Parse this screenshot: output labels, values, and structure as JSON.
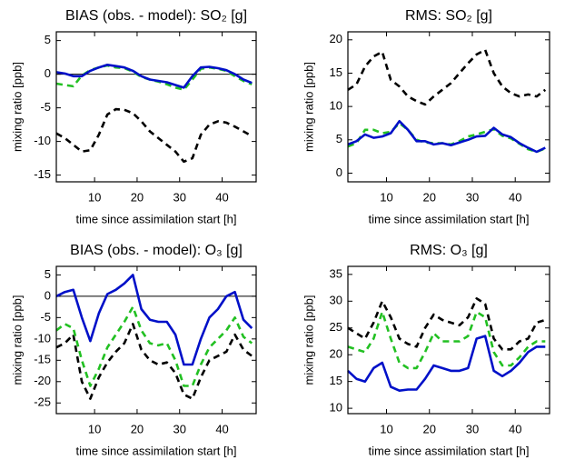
{
  "chart_data": [
    {
      "type": "line",
      "title": "BIAS (obs. - model): SO₂ [g]",
      "xlabel": "time since assimilation start [h]",
      "ylabel": "mixing ratio [ppb]",
      "x": [
        1,
        3,
        5,
        7,
        9,
        11,
        13,
        15,
        17,
        19,
        21,
        23,
        25,
        27,
        29,
        31,
        33,
        35,
        37,
        39,
        41,
        43,
        45,
        47
      ],
      "xlim": [
        1,
        48
      ],
      "xticks": [
        10,
        20,
        30,
        40
      ],
      "ylim": [
        -16,
        6.3
      ],
      "yticks": [
        -15,
        -10,
        -5,
        0,
        5
      ],
      "hline": 0,
      "series": [
        {
          "color": "#000000",
          "style": "dashed",
          "values": [
            -8.8,
            -9.5,
            -10.5,
            -11.5,
            -11.3,
            -9,
            -6,
            -5.2,
            -5.3,
            -5.8,
            -7,
            -8.5,
            -9.5,
            -10.5,
            -11.5,
            -13,
            -12.5,
            -9,
            -7.5,
            -7,
            -7.2,
            -7.8,
            -8.5,
            -9.2
          ]
        },
        {
          "color": "#22c022",
          "style": "dashed",
          "values": [
            -1.4,
            -1.6,
            -1.8,
            -0.2,
            0.6,
            1.0,
            1.3,
            1.0,
            0.9,
            0.4,
            -0.4,
            -0.8,
            -1.1,
            -1.5,
            -2.0,
            -2.3,
            -0.8,
            0.8,
            1.0,
            0.8,
            0.5,
            -0.3,
            -1.0,
            -1.5
          ]
        },
        {
          "color": "#0010c8",
          "style": "solid",
          "values": [
            0.3,
            0.1,
            -0.3,
            -0.3,
            0.5,
            1.0,
            1.4,
            1.2,
            1.0,
            0.5,
            -0.3,
            -0.8,
            -1.0,
            -1.2,
            -1.6,
            -2.0,
            -0.3,
            1.0,
            1.1,
            0.9,
            0.6,
            0,
            -0.8,
            -1.3
          ]
        }
      ]
    },
    {
      "type": "line",
      "title": "RMS: SO₂ [g]",
      "xlabel": "time since assimilation start [h]",
      "ylabel": "mixing ratio [ppb]",
      "x": [
        1,
        3,
        5,
        7,
        9,
        11,
        13,
        15,
        17,
        19,
        21,
        23,
        25,
        27,
        29,
        31,
        33,
        35,
        37,
        39,
        41,
        43,
        45,
        47
      ],
      "xlim": [
        1,
        48
      ],
      "xticks": [
        10,
        20,
        30,
        40
      ],
      "ylim": [
        -1.3,
        21.2
      ],
      "yticks": [
        0,
        5,
        10,
        15,
        20
      ],
      "series": [
        {
          "color": "#000000",
          "style": "dashed",
          "values": [
            12.5,
            13.3,
            16,
            17.5,
            18.2,
            14,
            13,
            11.5,
            10.8,
            10.3,
            11.5,
            12.5,
            13.5,
            15,
            16.5,
            17.8,
            18.5,
            15,
            13,
            12,
            11.5,
            11.8,
            11.5,
            12.5
          ]
        },
        {
          "color": "#22c022",
          "style": "dashed",
          "values": [
            4.0,
            4.5,
            6.5,
            6.5,
            6.0,
            6.2,
            7.5,
            6.5,
            5.0,
            4.6,
            4.5,
            4.5,
            4.3,
            4.8,
            5.5,
            5.8,
            6.2,
            6.6,
            5.6,
            5.2,
            4.4,
            3.6,
            3.2,
            3.7
          ]
        },
        {
          "color": "#0010c8",
          "style": "solid",
          "values": [
            4.3,
            4.8,
            5.8,
            5.3,
            5.5,
            6.0,
            7.8,
            6.5,
            4.8,
            4.8,
            4.3,
            4.5,
            4.2,
            4.6,
            5.0,
            5.5,
            5.6,
            6.8,
            5.8,
            5.4,
            4.5,
            3.8,
            3.2,
            3.8
          ]
        }
      ]
    },
    {
      "type": "line",
      "title": "BIAS (obs. - model): O₃ [g]",
      "xlabel": "time since assimilation start [h]",
      "ylabel": "mixing ratio [ppb]",
      "x": [
        1,
        3,
        5,
        7,
        9,
        11,
        13,
        15,
        17,
        19,
        21,
        23,
        25,
        27,
        29,
        31,
        33,
        35,
        37,
        39,
        41,
        43,
        45,
        47
      ],
      "xlim": [
        1,
        48
      ],
      "xticks": [
        10,
        20,
        30,
        40
      ],
      "ylim": [
        -27.5,
        7
      ],
      "yticks": [
        5,
        0,
        -5,
        -10,
        -15,
        -20,
        -25
      ],
      "hline": 0,
      "series": [
        {
          "color": "#000000",
          "style": "dashed",
          "values": [
            -12,
            -11,
            -9,
            -20,
            -24,
            -19,
            -15.5,
            -13,
            -11,
            -6.5,
            -12.5,
            -15,
            -16,
            -15.5,
            -18,
            -23,
            -24,
            -19,
            -15,
            -14,
            -13,
            -9,
            -12.5,
            -14
          ]
        },
        {
          "color": "#22c022",
          "style": "dashed",
          "values": [
            -8,
            -6.5,
            -7.5,
            -15,
            -21,
            -17,
            -12,
            -9,
            -6,
            -2.5,
            -8,
            -11,
            -11.5,
            -11,
            -15,
            -21,
            -21,
            -16,
            -12,
            -10,
            -8,
            -5,
            -9.5,
            -11
          ]
        },
        {
          "color": "#0010c8",
          "style": "solid",
          "values": [
            0,
            1,
            1.5,
            -5,
            -10.5,
            -4,
            0.5,
            1.5,
            3,
            5,
            -3,
            -5.5,
            -6,
            -6,
            -9,
            -16,
            -16,
            -10,
            -5,
            -3,
            0,
            1,
            -5.5,
            -7.5
          ]
        }
      ]
    },
    {
      "type": "line",
      "title": "RMS: O₃ [g]",
      "xlabel": "time since assimilation start [h]",
      "ylabel": "mixing ratio [ppb]",
      "x": [
        1,
        3,
        5,
        7,
        9,
        11,
        13,
        15,
        17,
        19,
        21,
        23,
        25,
        27,
        29,
        31,
        33,
        35,
        37,
        39,
        41,
        43,
        45,
        47
      ],
      "xlim": [
        1,
        48
      ],
      "xticks": [
        10,
        20,
        30,
        40
      ],
      "ylim": [
        9,
        36.5
      ],
      "yticks": [
        10,
        15,
        20,
        25,
        30,
        35
      ],
      "series": [
        {
          "color": "#000000",
          "style": "dashed",
          "values": [
            25,
            24,
            23,
            26,
            30,
            27,
            23,
            22,
            21.5,
            25,
            27.5,
            26.5,
            26,
            25.5,
            27,
            30.5,
            29.5,
            23,
            21,
            21,
            22.5,
            23,
            26,
            26.5
          ]
        },
        {
          "color": "#22c022",
          "style": "dashed",
          "values": [
            21.5,
            21,
            20.5,
            23,
            28,
            23,
            18.5,
            17.5,
            17.5,
            20.5,
            24,
            22.5,
            22.5,
            22.5,
            23.5,
            28,
            27,
            20.5,
            18,
            18,
            19.5,
            21.5,
            22.5,
            22.5
          ]
        },
        {
          "color": "#0010c8",
          "style": "solid",
          "values": [
            17,
            15.5,
            15,
            17.5,
            18.5,
            14,
            13.3,
            13.5,
            13.5,
            15.5,
            18,
            17.5,
            17,
            17,
            17.5,
            23,
            23.5,
            17,
            16,
            17,
            18.5,
            20.5,
            21.5,
            21.5
          ]
        }
      ]
    }
  ]
}
